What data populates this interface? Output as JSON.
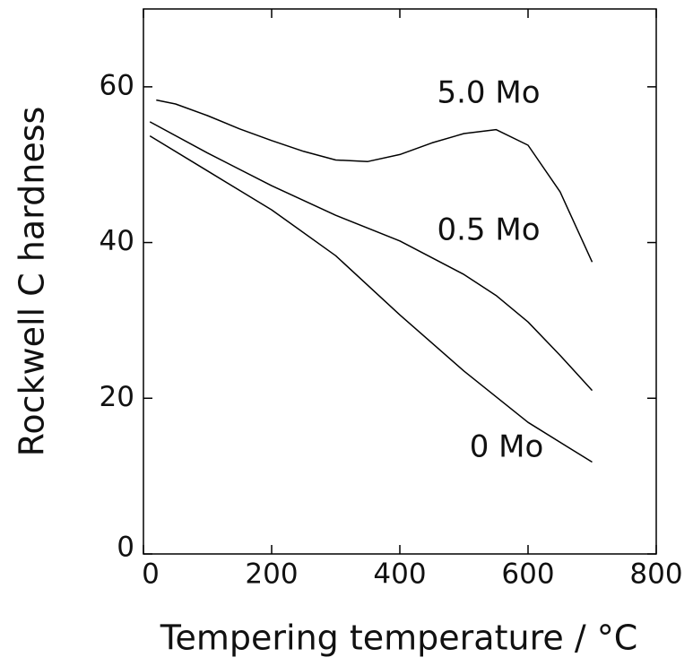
{
  "chart_data": {
    "type": "line",
    "xlabel": "Tempering temperature / °C",
    "ylabel": "Rockwell C hardness",
    "xlim": [
      0,
      800
    ],
    "ylim": [
      0,
      70
    ],
    "xticks": [
      0,
      200,
      400,
      600,
      800
    ],
    "yticks": [
      0,
      20,
      40,
      60
    ],
    "series": [
      {
        "name": "5.0 Mo",
        "color": "#000000",
        "x": [
          20,
          50,
          100,
          150,
          200,
          250,
          300,
          350,
          400,
          450,
          500,
          550,
          600,
          650,
          700
        ],
        "values": [
          58.3,
          57.8,
          56.3,
          54.6,
          53.1,
          51.7,
          50.6,
          50.4,
          51.3,
          52.8,
          54.0,
          54.5,
          52.5,
          46.5,
          37.5
        ]
      },
      {
        "name": "0.5 Mo",
        "color": "#000000",
        "x": [
          10,
          100,
          200,
          300,
          400,
          500,
          550,
          600,
          650,
          700
        ],
        "values": [
          55.5,
          51.5,
          47.3,
          43.5,
          40.2,
          35.9,
          33.2,
          29.8,
          25.5,
          21.0
        ]
      },
      {
        "name": "0 Mo",
        "color": "#000000",
        "x": [
          10,
          100,
          200,
          300,
          400,
          500,
          600,
          700
        ],
        "values": [
          53.7,
          49.2,
          44.2,
          38.3,
          30.7,
          23.5,
          16.9,
          11.8
        ]
      }
    ]
  }
}
